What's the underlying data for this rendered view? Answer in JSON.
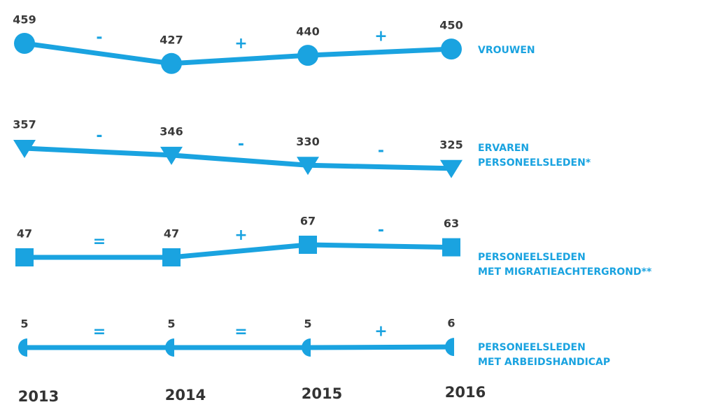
{
  "chart_data": {
    "type": "line",
    "categories": [
      "2013",
      "2014",
      "2015",
      "2016"
    ],
    "color": "#1aa3e0",
    "series": [
      {
        "name": [
          "VROUWEN"
        ],
        "marker": "circle",
        "values": [
          459,
          427,
          440,
          450
        ],
        "changes": [
          "-",
          "+",
          "+"
        ]
      },
      {
        "name": [
          "ERVAREN",
          "PERSONEELSLEDEN*"
        ],
        "marker": "triangle",
        "values": [
          357,
          346,
          330,
          325
        ],
        "changes": [
          "-",
          "-",
          "-"
        ]
      },
      {
        "name": [
          "PERSONEELSLEDEN",
          "MET MIGRATIEACHTERGROND**"
        ],
        "marker": "square",
        "values": [
          47,
          47,
          67,
          63
        ],
        "changes": [
          "=",
          "+",
          "-"
        ]
      },
      {
        "name": [
          "PERSONEELSLEDEN",
          "MET ARBEIDSHANDICAP"
        ],
        "marker": "half-circle",
        "values": [
          5,
          5,
          5,
          6
        ],
        "changes": [
          "=",
          "=",
          "+"
        ]
      }
    ]
  }
}
